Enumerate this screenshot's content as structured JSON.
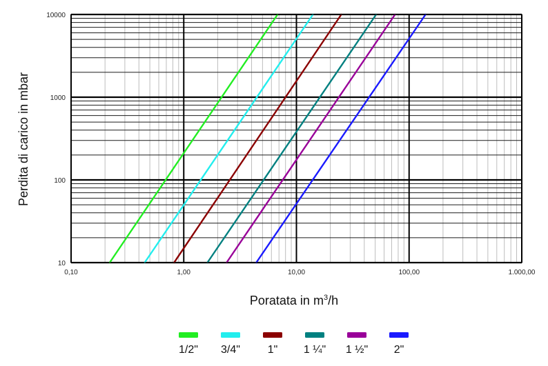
{
  "chart_data": {
    "type": "line",
    "title": "",
    "xlabel": "Poratata in m³/h",
    "xlabel_main": "Poratata in m",
    "xlabel_sup": "3",
    "xlabel_tail": "/h",
    "ylabel": "Perdita di carico in mbar",
    "x_scale": "log",
    "y_scale": "log",
    "xlim": [
      0.1,
      1000
    ],
    "ylim": [
      10,
      10000
    ],
    "grid": true,
    "legend_position": "bottom",
    "x_ticks": [
      {
        "value": 0.1,
        "label": "0,10"
      },
      {
        "value": 1,
        "label": "1,00"
      },
      {
        "value": 10,
        "label": "10,00"
      },
      {
        "value": 100,
        "label": "100,00"
      },
      {
        "value": 1000,
        "label": "1.000,00"
      }
    ],
    "y_ticks": [
      {
        "value": 10,
        "label": "10"
      },
      {
        "value": 100,
        "label": "100"
      },
      {
        "value": 1000,
        "label": "1000"
      },
      {
        "value": 10000,
        "label": "10000"
      }
    ],
    "series": [
      {
        "name": "1/2\"",
        "color": "#22ee22",
        "points": [
          [
            0.22,
            10
          ],
          [
            6.8,
            10000
          ]
        ]
      },
      {
        "name": "3/4\"",
        "color": "#22eeee",
        "points": [
          [
            0.45,
            10
          ],
          [
            14,
            10000
          ]
        ]
      },
      {
        "name": "1\"",
        "color": "#8b0000",
        "points": [
          [
            0.82,
            10
          ],
          [
            25,
            10000
          ]
        ]
      },
      {
        "name": "1 ¼\"",
        "color": "#008080",
        "points": [
          [
            1.62,
            10
          ],
          [
            51,
            10000
          ]
        ]
      },
      {
        "name": "1 ½\"",
        "color": "#990099",
        "points": [
          [
            2.4,
            10
          ],
          [
            75,
            10000
          ]
        ]
      },
      {
        "name": "2\"",
        "color": "#1a1aff",
        "points": [
          [
            4.4,
            10
          ],
          [
            140,
            10000
          ]
        ]
      }
    ]
  }
}
